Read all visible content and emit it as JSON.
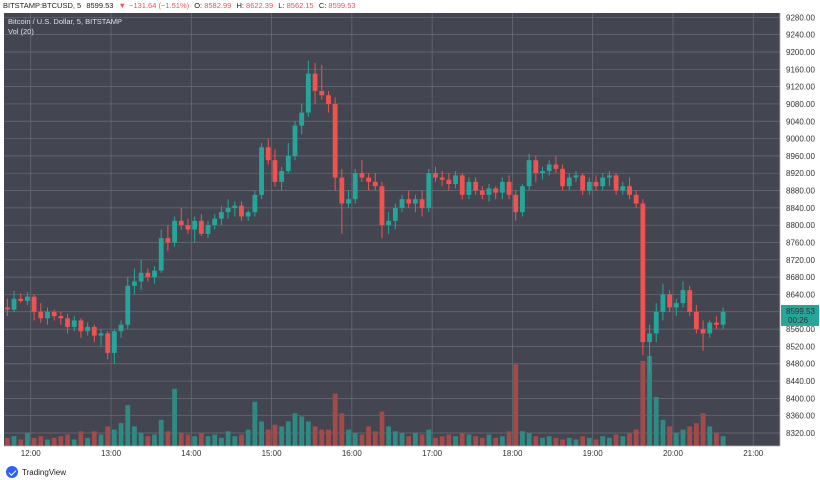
{
  "header": {
    "symbol": "BITSTAMP:BTCUSD, 5",
    "last": "8599.53",
    "change": "−131.64 (−1.51%)",
    "change_arrow": "▼",
    "o_label": "O:",
    "o": "8582.99",
    "h_label": "H:",
    "h": "8622.39",
    "l_label": "L:",
    "l": "8562.15",
    "c_label": "C:",
    "c": "8599.53",
    "overlay_title": "Bitcoin / U.S. Dollar, 5, BITSTAMP",
    "volume_label": "Vol (20)"
  },
  "price_tag": {
    "value": "8599.53",
    "countdown": "00:26"
  },
  "brand": {
    "name": "TradingView"
  },
  "colors": {
    "background": "#434651",
    "grid": "#6b6e78",
    "up": "#26a69a",
    "down": "#ef5350",
    "up_volume": "#2e8a82",
    "down_volume": "#a34a4a",
    "text": "#333333",
    "tag": "#26a69a"
  },
  "chart_data": {
    "type": "candlestick",
    "title": "Bitcoin / U.S. Dollar, 5, BITSTAMP",
    "symbol": "BITSTAMP:BTCUSD",
    "interval_minutes": 5,
    "x_ticks": [
      "12:00",
      "13:00",
      "14:00",
      "15:00",
      "16:00",
      "17:00",
      "18:00",
      "19:00",
      "20:00",
      "21:00"
    ],
    "x_start": "11:40",
    "x_end": "21:20",
    "y_ticks": [
      9280,
      9240,
      9200,
      9160,
      9120,
      9080,
      9040,
      9000,
      8960,
      8920,
      8880,
      8840,
      8800,
      8760,
      8720,
      8680,
      8640,
      8600,
      8560,
      8520,
      8480,
      8440,
      8400,
      8360,
      8320
    ],
    "ylim": [
      8290,
      9290
    ],
    "last_price": 8599.53,
    "candles": [
      {
        "t": "11:40",
        "o": 8610,
        "h": 8630,
        "l": 8590,
        "c": 8605,
        "v": 5
      },
      {
        "t": "11:45",
        "o": 8605,
        "h": 8648,
        "l": 8600,
        "c": 8630,
        "v": 6
      },
      {
        "t": "11:50",
        "o": 8630,
        "h": 8642,
        "l": 8620,
        "c": 8625,
        "v": 4
      },
      {
        "t": "11:55",
        "o": 8625,
        "h": 8645,
        "l": 8615,
        "c": 8635,
        "v": 8
      },
      {
        "t": "12:00",
        "o": 8635,
        "h": 8640,
        "l": 8580,
        "c": 8600,
        "v": 5
      },
      {
        "t": "12:05",
        "o": 8600,
        "h": 8620,
        "l": 8575,
        "c": 8585,
        "v": 6
      },
      {
        "t": "12:10",
        "o": 8585,
        "h": 8610,
        "l": 8570,
        "c": 8600,
        "v": 4
      },
      {
        "t": "12:15",
        "o": 8600,
        "h": 8605,
        "l": 8580,
        "c": 8590,
        "v": 5
      },
      {
        "t": "12:20",
        "o": 8590,
        "h": 8600,
        "l": 8570,
        "c": 8585,
        "v": 6
      },
      {
        "t": "12:25",
        "o": 8585,
        "h": 8595,
        "l": 8550,
        "c": 8565,
        "v": 7
      },
      {
        "t": "12:30",
        "o": 8565,
        "h": 8590,
        "l": 8555,
        "c": 8580,
        "v": 4
      },
      {
        "t": "12:35",
        "o": 8580,
        "h": 8585,
        "l": 8540,
        "c": 8555,
        "v": 9
      },
      {
        "t": "12:40",
        "o": 8555,
        "h": 8575,
        "l": 8545,
        "c": 8565,
        "v": 5
      },
      {
        "t": "12:45",
        "o": 8565,
        "h": 8570,
        "l": 8530,
        "c": 8545,
        "v": 9
      },
      {
        "t": "12:50",
        "o": 8545,
        "h": 8560,
        "l": 8520,
        "c": 8550,
        "v": 7
      },
      {
        "t": "12:55",
        "o": 8550,
        "h": 8555,
        "l": 8490,
        "c": 8505,
        "v": 12
      },
      {
        "t": "13:00",
        "o": 8505,
        "h": 8560,
        "l": 8480,
        "c": 8555,
        "v": 10
      },
      {
        "t": "13:05",
        "o": 8555,
        "h": 8580,
        "l": 8540,
        "c": 8570,
        "v": 14
      },
      {
        "t": "13:10",
        "o": 8570,
        "h": 8680,
        "l": 8560,
        "c": 8660,
        "v": 25
      },
      {
        "t": "13:15",
        "o": 8660,
        "h": 8700,
        "l": 8640,
        "c": 8670,
        "v": 12
      },
      {
        "t": "13:20",
        "o": 8670,
        "h": 8720,
        "l": 8650,
        "c": 8690,
        "v": 8
      },
      {
        "t": "13:25",
        "o": 8690,
        "h": 8700,
        "l": 8670,
        "c": 8680,
        "v": 6
      },
      {
        "t": "13:30",
        "o": 8680,
        "h": 8705,
        "l": 8665,
        "c": 8695,
        "v": 7
      },
      {
        "t": "13:35",
        "o": 8695,
        "h": 8790,
        "l": 8690,
        "c": 8770,
        "v": 16
      },
      {
        "t": "13:40",
        "o": 8770,
        "h": 8800,
        "l": 8740,
        "c": 8760,
        "v": 9
      },
      {
        "t": "13:45",
        "o": 8760,
        "h": 8820,
        "l": 8750,
        "c": 8810,
        "v": 35
      },
      {
        "t": "13:50",
        "o": 8810,
        "h": 8840,
        "l": 8790,
        "c": 8800,
        "v": 8
      },
      {
        "t": "13:55",
        "o": 8800,
        "h": 8815,
        "l": 8780,
        "c": 8790,
        "v": 7
      },
      {
        "t": "14:00",
        "o": 8790,
        "h": 8820,
        "l": 8760,
        "c": 8810,
        "v": 6
      },
      {
        "t": "14:05",
        "o": 8810,
        "h": 8825,
        "l": 8775,
        "c": 8780,
        "v": 8
      },
      {
        "t": "14:10",
        "o": 8780,
        "h": 8810,
        "l": 8770,
        "c": 8800,
        "v": 6
      },
      {
        "t": "14:15",
        "o": 8800,
        "h": 8825,
        "l": 8790,
        "c": 8815,
        "v": 7
      },
      {
        "t": "14:20",
        "o": 8815,
        "h": 8845,
        "l": 8800,
        "c": 8830,
        "v": 5
      },
      {
        "t": "14:25",
        "o": 8830,
        "h": 8860,
        "l": 8815,
        "c": 8840,
        "v": 9
      },
      {
        "t": "14:30",
        "o": 8840,
        "h": 8855,
        "l": 8820,
        "c": 8845,
        "v": 6
      },
      {
        "t": "14:35",
        "o": 8845,
        "h": 8855,
        "l": 8810,
        "c": 8820,
        "v": 7
      },
      {
        "t": "14:40",
        "o": 8820,
        "h": 8835,
        "l": 8810,
        "c": 8830,
        "v": 10
      },
      {
        "t": "14:45",
        "o": 8830,
        "h": 8880,
        "l": 8820,
        "c": 8870,
        "v": 27
      },
      {
        "t": "14:50",
        "o": 8870,
        "h": 8990,
        "l": 8860,
        "c": 8980,
        "v": 15
      },
      {
        "t": "14:55",
        "o": 8980,
        "h": 9000,
        "l": 8940,
        "c": 8950,
        "v": 10
      },
      {
        "t": "15:00",
        "o": 8950,
        "h": 8975,
        "l": 8890,
        "c": 8900,
        "v": 13
      },
      {
        "t": "15:05",
        "o": 8900,
        "h": 8935,
        "l": 8880,
        "c": 8925,
        "v": 12
      },
      {
        "t": "15:10",
        "o": 8925,
        "h": 8990,
        "l": 8920,
        "c": 8960,
        "v": 15
      },
      {
        "t": "15:15",
        "o": 8960,
        "h": 9040,
        "l": 8950,
        "c": 9030,
        "v": 20
      },
      {
        "t": "15:20",
        "o": 9030,
        "h": 9080,
        "l": 9010,
        "c": 9060,
        "v": 18
      },
      {
        "t": "15:25",
        "o": 9060,
        "h": 9180,
        "l": 9050,
        "c": 9150,
        "v": 15
      },
      {
        "t": "15:30",
        "o": 9150,
        "h": 9175,
        "l": 9080,
        "c": 9110,
        "v": 12
      },
      {
        "t": "15:35",
        "o": 9110,
        "h": 9170,
        "l": 9090,
        "c": 9100,
        "v": 10
      },
      {
        "t": "15:40",
        "o": 9100,
        "h": 9110,
        "l": 9060,
        "c": 9080,
        "v": 10
      },
      {
        "t": "15:45",
        "o": 9080,
        "h": 9095,
        "l": 8880,
        "c": 8910,
        "v": 32
      },
      {
        "t": "15:50",
        "o": 8910,
        "h": 8930,
        "l": 8780,
        "c": 8850,
        "v": 20
      },
      {
        "t": "15:55",
        "o": 8850,
        "h": 8880,
        "l": 8840,
        "c": 8860,
        "v": 10
      },
      {
        "t": "16:00",
        "o": 8860,
        "h": 8930,
        "l": 8850,
        "c": 8920,
        "v": 8
      },
      {
        "t": "16:05",
        "o": 8920,
        "h": 8950,
        "l": 8900,
        "c": 8910,
        "v": 7
      },
      {
        "t": "16:10",
        "o": 8910,
        "h": 8920,
        "l": 8880,
        "c": 8900,
        "v": 12
      },
      {
        "t": "16:15",
        "o": 8900,
        "h": 8920,
        "l": 8880,
        "c": 8890,
        "v": 9
      },
      {
        "t": "16:20",
        "o": 8890,
        "h": 8900,
        "l": 8770,
        "c": 8800,
        "v": 21
      },
      {
        "t": "16:25",
        "o": 8800,
        "h": 8830,
        "l": 8780,
        "c": 8810,
        "v": 12
      },
      {
        "t": "16:30",
        "o": 8810,
        "h": 8850,
        "l": 8790,
        "c": 8840,
        "v": 9
      },
      {
        "t": "16:35",
        "o": 8840,
        "h": 8870,
        "l": 8830,
        "c": 8860,
        "v": 8
      },
      {
        "t": "16:40",
        "o": 8860,
        "h": 8880,
        "l": 8840,
        "c": 8850,
        "v": 6
      },
      {
        "t": "16:45",
        "o": 8850,
        "h": 8870,
        "l": 8830,
        "c": 8860,
        "v": 8
      },
      {
        "t": "16:50",
        "o": 8860,
        "h": 8880,
        "l": 8820,
        "c": 8840,
        "v": 7
      },
      {
        "t": "16:55",
        "o": 8840,
        "h": 8930,
        "l": 8830,
        "c": 8920,
        "v": 10
      },
      {
        "t": "17:00",
        "o": 8920,
        "h": 8935,
        "l": 8900,
        "c": 8910,
        "v": 5
      },
      {
        "t": "17:05",
        "o": 8910,
        "h": 8925,
        "l": 8890,
        "c": 8905,
        "v": 6
      },
      {
        "t": "17:10",
        "o": 8905,
        "h": 8920,
        "l": 8880,
        "c": 8895,
        "v": 7
      },
      {
        "t": "17:15",
        "o": 8895,
        "h": 8925,
        "l": 8885,
        "c": 8915,
        "v": 6
      },
      {
        "t": "17:20",
        "o": 8915,
        "h": 8920,
        "l": 8860,
        "c": 8870,
        "v": 8
      },
      {
        "t": "17:25",
        "o": 8870,
        "h": 8910,
        "l": 8860,
        "c": 8900,
        "v": 7
      },
      {
        "t": "17:30",
        "o": 8900,
        "h": 8910,
        "l": 8870,
        "c": 8880,
        "v": 6
      },
      {
        "t": "17:35",
        "o": 8880,
        "h": 8890,
        "l": 8860,
        "c": 8870,
        "v": 5
      },
      {
        "t": "17:40",
        "o": 8870,
        "h": 8895,
        "l": 8855,
        "c": 8885,
        "v": 7
      },
      {
        "t": "17:45",
        "o": 8885,
        "h": 8890,
        "l": 8860,
        "c": 8875,
        "v": 5
      },
      {
        "t": "17:50",
        "o": 8875,
        "h": 8910,
        "l": 8860,
        "c": 8900,
        "v": 6
      },
      {
        "t": "17:55",
        "o": 8900,
        "h": 8915,
        "l": 8860,
        "c": 8870,
        "v": 9
      },
      {
        "t": "18:00",
        "o": 8870,
        "h": 8880,
        "l": 8810,
        "c": 8830,
        "v": 50
      },
      {
        "t": "18:05",
        "o": 8830,
        "h": 8895,
        "l": 8820,
        "c": 8890,
        "v": 9
      },
      {
        "t": "18:10",
        "o": 8890,
        "h": 8965,
        "l": 8880,
        "c": 8950,
        "v": 8
      },
      {
        "t": "18:15",
        "o": 8950,
        "h": 8960,
        "l": 8900,
        "c": 8920,
        "v": 6
      },
      {
        "t": "18:20",
        "o": 8920,
        "h": 8935,
        "l": 8905,
        "c": 8925,
        "v": 5
      },
      {
        "t": "18:25",
        "o": 8925,
        "h": 8950,
        "l": 8915,
        "c": 8940,
        "v": 6
      },
      {
        "t": "18:30",
        "o": 8940,
        "h": 8960,
        "l": 8920,
        "c": 8930,
        "v": 5
      },
      {
        "t": "18:35",
        "o": 8930,
        "h": 8940,
        "l": 8880,
        "c": 8890,
        "v": 4
      },
      {
        "t": "18:40",
        "o": 8890,
        "h": 8920,
        "l": 8880,
        "c": 8910,
        "v": 5
      },
      {
        "t": "18:45",
        "o": 8910,
        "h": 8925,
        "l": 8900,
        "c": 8915,
        "v": 4
      },
      {
        "t": "18:50",
        "o": 8915,
        "h": 8920,
        "l": 8870,
        "c": 8880,
        "v": 6
      },
      {
        "t": "18:55",
        "o": 8880,
        "h": 8910,
        "l": 8870,
        "c": 8900,
        "v": 5
      },
      {
        "t": "19:00",
        "o": 8900,
        "h": 8915,
        "l": 8880,
        "c": 8890,
        "v": 4
      },
      {
        "t": "19:05",
        "o": 8890,
        "h": 8920,
        "l": 8880,
        "c": 8910,
        "v": 6
      },
      {
        "t": "19:10",
        "o": 8910,
        "h": 8925,
        "l": 8890,
        "c": 8915,
        "v": 5
      },
      {
        "t": "19:15",
        "o": 8915,
        "h": 8920,
        "l": 8870,
        "c": 8880,
        "v": 7
      },
      {
        "t": "19:20",
        "o": 8880,
        "h": 8900,
        "l": 8870,
        "c": 8890,
        "v": 6
      },
      {
        "t": "19:25",
        "o": 8890,
        "h": 8910,
        "l": 8860,
        "c": 8870,
        "v": 8
      },
      {
        "t": "19:30",
        "o": 8870,
        "h": 8880,
        "l": 8840,
        "c": 8850,
        "v": 10
      },
      {
        "t": "19:35",
        "o": 8850,
        "h": 8860,
        "l": 8500,
        "c": 8530,
        "v": 52
      },
      {
        "t": "19:40",
        "o": 8530,
        "h": 8570,
        "l": 8460,
        "c": 8550,
        "v": 55
      },
      {
        "t": "19:45",
        "o": 8550,
        "h": 8620,
        "l": 8530,
        "c": 8600,
        "v": 30
      },
      {
        "t": "19:50",
        "o": 8600,
        "h": 8665,
        "l": 8580,
        "c": 8640,
        "v": 16
      },
      {
        "t": "19:55",
        "o": 8640,
        "h": 8650,
        "l": 8600,
        "c": 8610,
        "v": 12
      },
      {
        "t": "20:00",
        "o": 8610,
        "h": 8630,
        "l": 8590,
        "c": 8620,
        "v": 8
      },
      {
        "t": "20:05",
        "o": 8620,
        "h": 8670,
        "l": 8610,
        "c": 8650,
        "v": 10
      },
      {
        "t": "20:10",
        "o": 8650,
        "h": 8660,
        "l": 8590,
        "c": 8600,
        "v": 12
      },
      {
        "t": "20:15",
        "o": 8600,
        "h": 8615,
        "l": 8550,
        "c": 8560,
        "v": 14
      },
      {
        "t": "20:20",
        "o": 8560,
        "h": 8580,
        "l": 8510,
        "c": 8550,
        "v": 20
      },
      {
        "t": "20:25",
        "o": 8550,
        "h": 8580,
        "l": 8540,
        "c": 8575,
        "v": 12
      },
      {
        "t": "20:30",
        "o": 8575,
        "h": 8590,
        "l": 8560,
        "c": 8570,
        "v": 8
      },
      {
        "t": "20:35",
        "o": 8570,
        "h": 8610,
        "l": 8560,
        "c": 8600,
        "v": 6
      }
    ]
  }
}
